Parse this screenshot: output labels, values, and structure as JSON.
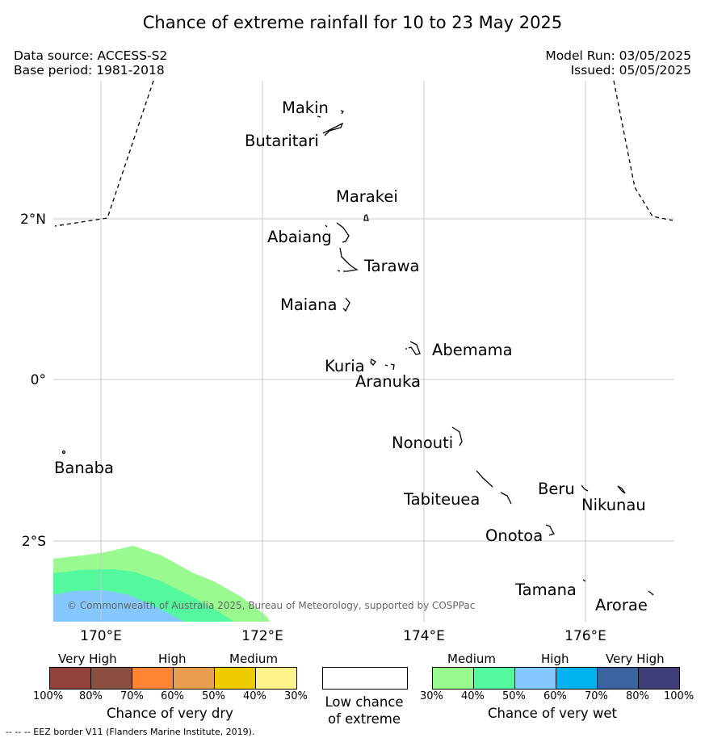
{
  "title": "Chance of extreme rainfall for 10 to 23 May 2025",
  "data_source": "Data source: ACCESS-S2",
  "base_period": "Base period: 1981-2018",
  "model_run": "Model Run: 03/05/2025",
  "issued": "Issued: 05/05/2025",
  "map": {
    "lat_ticks": [
      "2°N",
      "0°",
      "2°S"
    ],
    "lon_ticks": [
      "170°E",
      "172°E",
      "174°E",
      "176°E"
    ],
    "islands": {
      "makin": "Makin",
      "butaritari": "Butaritari",
      "marakei": "Marakei",
      "abaiang": "Abaiang",
      "tarawa": "Tarawa",
      "maiana": "Maiana",
      "abemama": "Abemama",
      "kuria": "Kuria",
      "aranuka": "Aranuka",
      "banaba": "Banaba",
      "nonouti": "Nonouti",
      "beru": "Beru",
      "nikunau": "Nikunau",
      "tabiteuea": "Tabiteuea",
      "onotoa": "Onotoa",
      "tamana": "Tamana",
      "arorae": "Arorae"
    },
    "copyright": "© Commonwealth of Australia 2025, Bureau of Meteorology, supported by COSPPac",
    "wet_shading_colors": [
      "#98fa8f",
      "#54f99e",
      "#85c8ff"
    ]
  },
  "legend": {
    "dry": {
      "categories": [
        "Very High",
        "High",
        "Medium"
      ],
      "percents": [
        "100%",
        "80%",
        "70%",
        "60%",
        "50%",
        "40%",
        "30%"
      ],
      "colors": [
        "#92423a",
        "#8b4f3f",
        "#ff8533",
        "#e99d4f",
        "#eeca00",
        "#fff48c"
      ],
      "title": "Chance of very dry"
    },
    "low": {
      "title_line1": "Low chance",
      "title_line2": "of extreme",
      "color": "#ffffff"
    },
    "wet": {
      "categories": [
        "Medium",
        "High",
        "Very High"
      ],
      "percents": [
        "30%",
        "40%",
        "50%",
        "60%",
        "70%",
        "80%",
        "100%"
      ],
      "colors": [
        "#98fa8f",
        "#54f99e",
        "#85c8ff",
        "#00b3f0",
        "#3964a0",
        "#3f3d7a"
      ],
      "title": "Chance of very wet"
    }
  },
  "footnote": "--  --  -- EEZ border V11 (Flanders Marine Institute, 2019)."
}
